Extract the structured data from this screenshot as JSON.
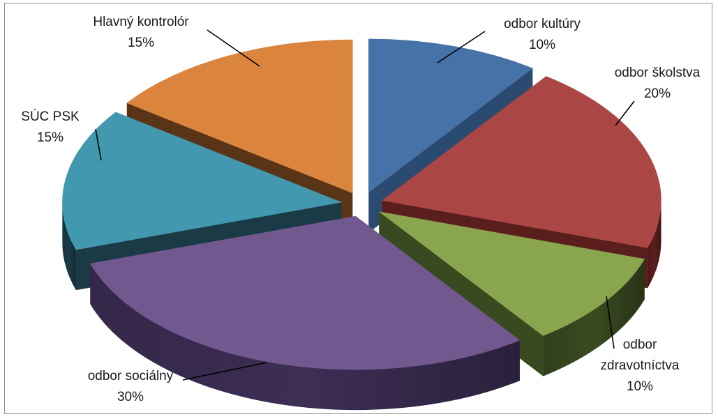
{
  "chart_data": {
    "type": "pie",
    "style": "3d-exploded",
    "legend": "none",
    "title": "",
    "slices": [
      {
        "label": "odbor kultúry",
        "value": 10,
        "value_label": "10%",
        "color": "#4572a7",
        "side_color": "#2b4a6f"
      },
      {
        "label": "odbor školstva",
        "value": 20,
        "value_label": "20%",
        "color": "#aa4643",
        "side_color": "#5a1f1d"
      },
      {
        "label": "odbor zdravotníctva",
        "value": 10,
        "value_label": "10%",
        "color": "#89a54e",
        "side_color": "#3a4a20"
      },
      {
        "label": "odbor sociálny",
        "value": 30,
        "value_label": "30%",
        "color": "#71588f",
        "side_color": "#3d2e55"
      },
      {
        "label": "SÚC PSK",
        "value": 15,
        "value_label": "15%",
        "color": "#4198af",
        "side_color": "#1a3a46"
      },
      {
        "label": "Hlavný kontrolór",
        "value": 15,
        "value_label": "15%",
        "color": "#db843d",
        "side_color": "#5a3417"
      }
    ]
  }
}
